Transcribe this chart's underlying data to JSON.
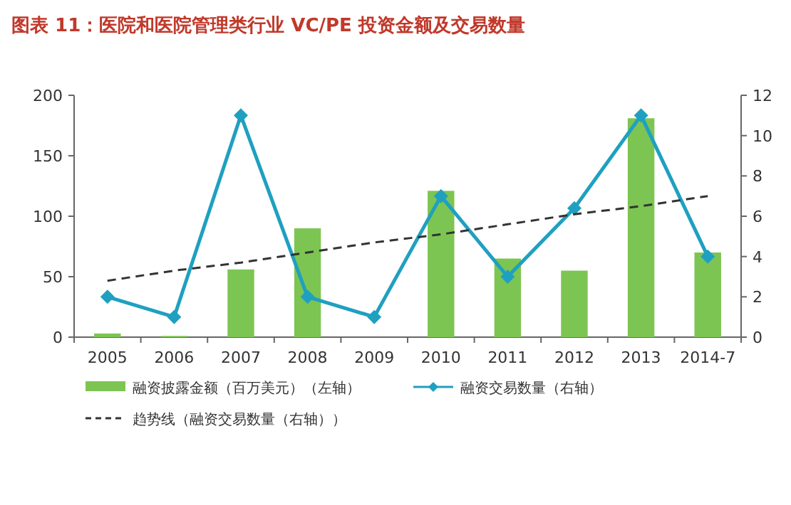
{
  "chart_data": {
    "type": "bar",
    "title": "图表 11：医院和医院管理类行业 VC/PE 投资金额及交易数量",
    "categories": [
      "2005",
      "2006",
      "2007",
      "2008",
      "2009",
      "2010",
      "2011",
      "2012",
      "2013",
      "2014-7"
    ],
    "series": [
      {
        "name": "融资披露金额（百万美元）（左轴）",
        "color": "#7dc552",
        "values": [
          3,
          1,
          56,
          90,
          0,
          121,
          65,
          55,
          181,
          70
        ]
      },
      {
        "name": "融资交易数量（右轴）",
        "type": "line",
        "axis": "y2",
        "color": "#1fa0c0",
        "marker": "diamond",
        "line_style": "solid",
        "values": [
          2,
          1,
          11,
          2,
          1,
          7,
          3,
          6.4,
          11,
          4
        ]
      },
      {
        "name": "趋势线（融资交易数量（右轴））",
        "type": "line",
        "axis": "y2",
        "color": "#333333",
        "marker": "none",
        "line_style": "dashed",
        "values": [
          2.8,
          3.3,
          3.7,
          4.2,
          4.7,
          5.1,
          5.6,
          6.1,
          6.5,
          7.0
        ]
      }
    ],
    "ylim": [
      0,
      200
    ],
    "yticks": [
      0,
      50,
      100,
      150,
      200
    ],
    "y2lim": [
      0,
      12
    ],
    "y2ticks": [
      0,
      2,
      4,
      6,
      8,
      10,
      12
    ],
    "grid": false,
    "legend": "bottom"
  }
}
